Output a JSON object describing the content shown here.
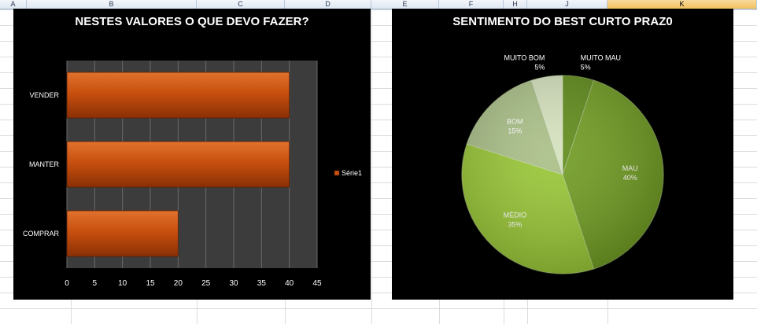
{
  "spreadsheet": {
    "columns": [
      "A",
      "B",
      "C",
      "D",
      "E",
      "F",
      "H",
      "J",
      "K"
    ],
    "selected_column": "K",
    "header_color": "#dde6f1",
    "selected_color": "#f1c15f"
  },
  "chart_data": [
    {
      "type": "bar",
      "orientation": "horizontal",
      "title": "NESTES VALORES O QUE DEVO FAZER?",
      "categories": [
        "VENDER",
        "MANTER",
        "COMPRAR"
      ],
      "series": [
        {
          "name": "Série1",
          "values": [
            40,
            40,
            20
          ],
          "color": "#c8500f"
        }
      ],
      "xlim": [
        0,
        45
      ],
      "x_ticks": [
        "0",
        "5",
        "10",
        "15",
        "20",
        "25",
        "30",
        "35",
        "40",
        "45"
      ],
      "grid": true,
      "legend": "right",
      "plot_background": "#3c3c3c",
      "background": "#000000"
    },
    {
      "type": "pie",
      "title": "SENTIMENTO DO BEST  CURTO PRAZ0",
      "slices": [
        {
          "label": "MUITO MAU",
          "value": 5,
          "percent_label": "5%",
          "color": "#5e8a18"
        },
        {
          "label": "MAU",
          "value": 40,
          "percent_label": "40%",
          "color": "#6f9b20"
        },
        {
          "label": "MÉDIO",
          "value": 35,
          "percent_label": "35%",
          "color": "#98c634"
        },
        {
          "label": "BOM",
          "value": 15,
          "percent_label": "15%",
          "color": "#a9bf86"
        },
        {
          "label": "MUITO BOM",
          "value": 5,
          "percent_label": "5%",
          "color": "#d4e2bd"
        }
      ],
      "start": "top",
      "direction": "clockwise",
      "background": "#000000"
    }
  ]
}
